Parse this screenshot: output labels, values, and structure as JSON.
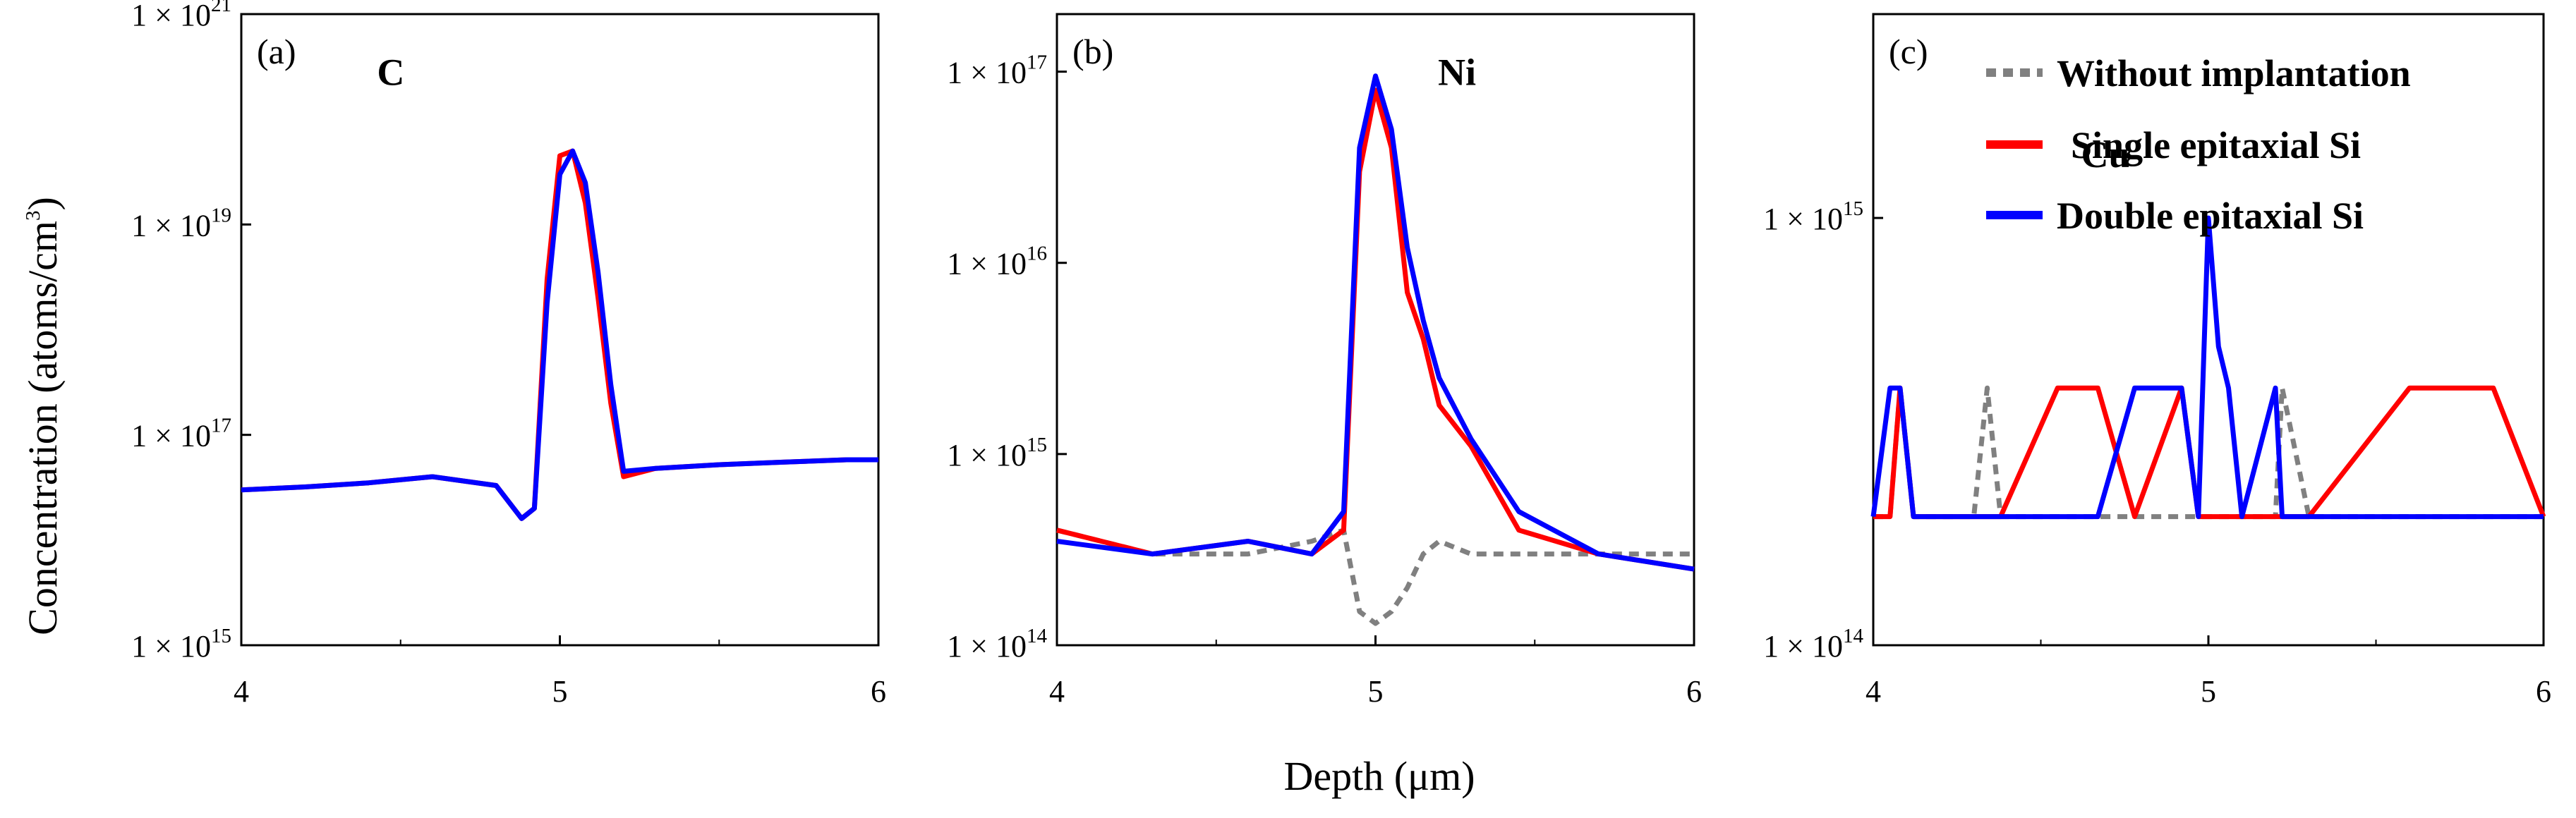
{
  "colors": {
    "without": "#808080",
    "single": "#ff0000",
    "double": "#0000ff"
  },
  "figure": {
    "ylabel": "Concentration (atoms/cm",
    "ylabel_sup": "3",
    "ylabel_end": ")",
    "xlabel": "Depth (μm)"
  },
  "legend": {
    "without": "Without implantation",
    "single": "Single epitaxial Si",
    "double": "Double epitaxial Si"
  },
  "chart_data": [
    {
      "type": "line",
      "panel": "(a)",
      "element": "C",
      "x": [
        4.0,
        4.2,
        4.4,
        4.6,
        4.8,
        4.88,
        4.92,
        4.96,
        5.0,
        5.04,
        5.08,
        5.12,
        5.16,
        5.2,
        5.3,
        5.5,
        5.7,
        5.9,
        6.0
      ],
      "series": [
        {
          "name": "Single epitaxial Si",
          "values": [
            3e+16,
            3.2e+16,
            3.5e+16,
            4e+16,
            3.3e+16,
            1.6e+16,
            2e+16,
            3e+18,
            4.5e+19,
            5e+19,
            1.6e+19,
            2e+18,
            2e+17,
            4e+16,
            4.8e+16,
            5.2e+16,
            5.5e+16,
            5.8e+16,
            5.8e+16
          ]
        },
        {
          "name": "Double epitaxial Si",
          "values": [
            3e+16,
            3.2e+16,
            3.5e+16,
            4e+16,
            3.3e+16,
            1.6e+16,
            2e+16,
            1.8e+18,
            3e+19,
            5e+19,
            2.5e+19,
            3.5e+18,
            3e+17,
            4.5e+16,
            4.8e+16,
            5.2e+16,
            5.5e+16,
            5.8e+16,
            5.8e+16
          ]
        }
      ],
      "ylim": [
        1000000000000000.0,
        1e+21
      ],
      "xlim": [
        4,
        6
      ],
      "xticks": [
        "4",
        "5",
        "6"
      ],
      "yticks": [
        {
          "base": "1 × 10",
          "exp": "15"
        },
        {
          "base": "1 × 10",
          "exp": "17"
        },
        {
          "base": "1 × 10",
          "exp": "19"
        },
        {
          "base": "1 × 10",
          "exp": "21"
        }
      ]
    },
    {
      "type": "line",
      "panel": "(b)",
      "element": "Ni",
      "x": [
        4.0,
        4.3,
        4.6,
        4.8,
        4.9,
        4.95,
        5.0,
        5.05,
        5.1,
        5.15,
        5.2,
        5.3,
        5.45,
        5.7,
        6.0
      ],
      "series": [
        {
          "name": "Without implantation",
          "values": [
            400000000000000.0,
            300000000000000.0,
            300000000000000.0,
            350000000000000.0,
            400000000000000.0,
            150000000000000.0,
            130000000000000.0,
            150000000000000.0,
            200000000000000.0,
            300000000000000.0,
            350000000000000.0,
            300000000000000.0,
            300000000000000.0,
            300000000000000.0,
            300000000000000.0
          ]
        },
        {
          "name": "Single epitaxial Si",
          "values": [
            400000000000000.0,
            300000000000000.0,
            350000000000000.0,
            300000000000000.0,
            400000000000000.0,
            3e+16,
            8e+16,
            4e+16,
            7000000000000000.0,
            4000000000000000.0,
            1800000000000000.0,
            1100000000000000.0,
            400000000000000.0,
            300000000000000.0,
            250000000000000.0
          ]
        },
        {
          "name": "Double epitaxial Si",
          "values": [
            350000000000000.0,
            300000000000000.0,
            350000000000000.0,
            300000000000000.0,
            500000000000000.0,
            4e+16,
            9.5e+16,
            5e+16,
            1.2e+16,
            5000000000000000.0,
            2500000000000000.0,
            1200000000000000.0,
            500000000000000.0,
            300000000000000.0,
            250000000000000.0
          ]
        }
      ],
      "ylim": [
        100000000000000.0,
        2e+17
      ],
      "xlim": [
        4,
        6
      ],
      "xticks": [
        "4",
        "5",
        "6"
      ],
      "yticks": [
        {
          "base": "1 × 10",
          "exp": "14"
        },
        {
          "base": "1 × 10",
          "exp": "15"
        },
        {
          "base": "1 × 10",
          "exp": "16"
        },
        {
          "base": "1 × 10",
          "exp": "17"
        }
      ]
    },
    {
      "type": "line",
      "panel": "(c)",
      "element": "Cu",
      "x": [
        4.0,
        4.05,
        4.08,
        4.12,
        4.3,
        4.34,
        4.38,
        4.55,
        4.67,
        4.78,
        4.92,
        4.97,
        5.0,
        5.03,
        5.06,
        5.1,
        5.2,
        5.22,
        5.3,
        5.6,
        5.85,
        6.0
      ],
      "series": [
        {
          "name": "Without implantation",
          "values": [
            200000000000000.0,
            200000000000000.0,
            400000000000000.0,
            200000000000000.0,
            200000000000000.0,
            400000000000000.0,
            200000000000000.0,
            200000000000000.0,
            200000000000000.0,
            200000000000000.0,
            200000000000000.0,
            200000000000000.0,
            200000000000000.0,
            200000000000000.0,
            200000000000000.0,
            200000000000000.0,
            200000000000000.0,
            400000000000000.0,
            200000000000000.0,
            200000000000000.0,
            200000000000000.0,
            200000000000000.0
          ]
        },
        {
          "name": "Single epitaxial Si",
          "values": [
            200000000000000.0,
            200000000000000.0,
            400000000000000.0,
            200000000000000.0,
            200000000000000.0,
            200000000000000.0,
            200000000000000.0,
            400000000000000.0,
            400000000000000.0,
            200000000000000.0,
            400000000000000.0,
            200000000000000.0,
            200000000000000.0,
            200000000000000.0,
            200000000000000.0,
            200000000000000.0,
            200000000000000.0,
            200000000000000.0,
            200000000000000.0,
            400000000000000.0,
            400000000000000.0,
            200000000000000.0
          ]
        },
        {
          "name": "Double epitaxial Si",
          "values": [
            200000000000000.0,
            400000000000000.0,
            400000000000000.0,
            200000000000000.0,
            200000000000000.0,
            200000000000000.0,
            200000000000000.0,
            200000000000000.0,
            200000000000000.0,
            400000000000000.0,
            400000000000000.0,
            200000000000000.0,
            1000000000000000.0,
            500000000000000.0,
            400000000000000.0,
            200000000000000.0,
            400000000000000.0,
            200000000000000.0,
            200000000000000.0,
            200000000000000.0,
            200000000000000.0,
            200000000000000.0
          ]
        }
      ],
      "ylim": [
        100000000000000.0,
        3000000000000000.0
      ],
      "xlim": [
        4,
        6
      ],
      "xticks": [
        "4",
        "5",
        "6"
      ],
      "yticks": [
        {
          "base": "1 × 10",
          "exp": "14"
        },
        {
          "base": "1 × 10",
          "exp": "15"
        }
      ]
    }
  ]
}
